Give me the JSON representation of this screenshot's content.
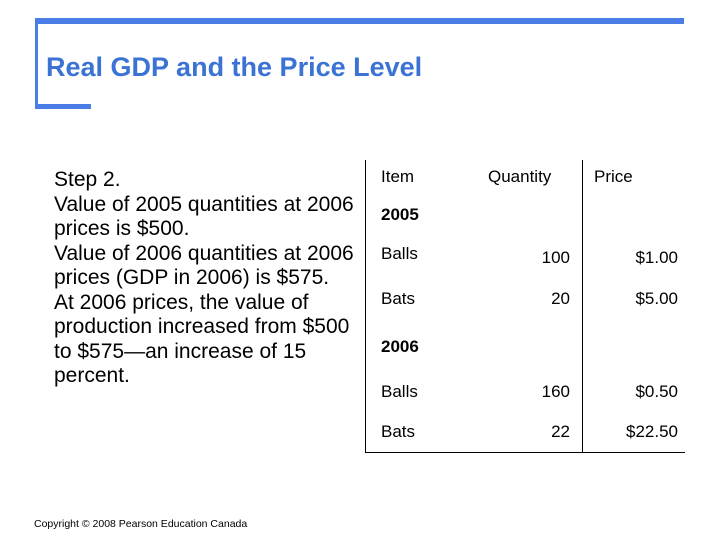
{
  "slide": {
    "title": "Real GDP and the Price Level"
  },
  "body": {
    "lines": [
      "Step 2.",
      "Value of 2005 quantities at 2006 prices is $500.",
      "Value of 2006 quantities at 2006 prices (GDP in 2006) is $575.",
      "At 2006 prices, the value of production increased from $500 to $575—an increase of 15 percent."
    ]
  },
  "table": {
    "headers": {
      "item": "Item",
      "quantity": "Quantity",
      "price": "Price"
    },
    "groups": [
      {
        "year": "2005",
        "rows": [
          {
            "item": "Balls",
            "quantity": "100",
            "price": "$1.00"
          },
          {
            "item": "Bats",
            "quantity": "20",
            "price": "$5.00"
          }
        ]
      },
      {
        "year": "2006",
        "rows": [
          {
            "item": "Balls",
            "quantity": "160",
            "price": "$0.50"
          },
          {
            "item": "Bats",
            "quantity": "22",
            "price": "$22.50"
          }
        ]
      }
    ]
  },
  "footer": {
    "copyright": "Copyright © 2008 Pearson Education Canada"
  },
  "colors": {
    "accent": "#4a7ee6",
    "title": "#3b73d4"
  }
}
